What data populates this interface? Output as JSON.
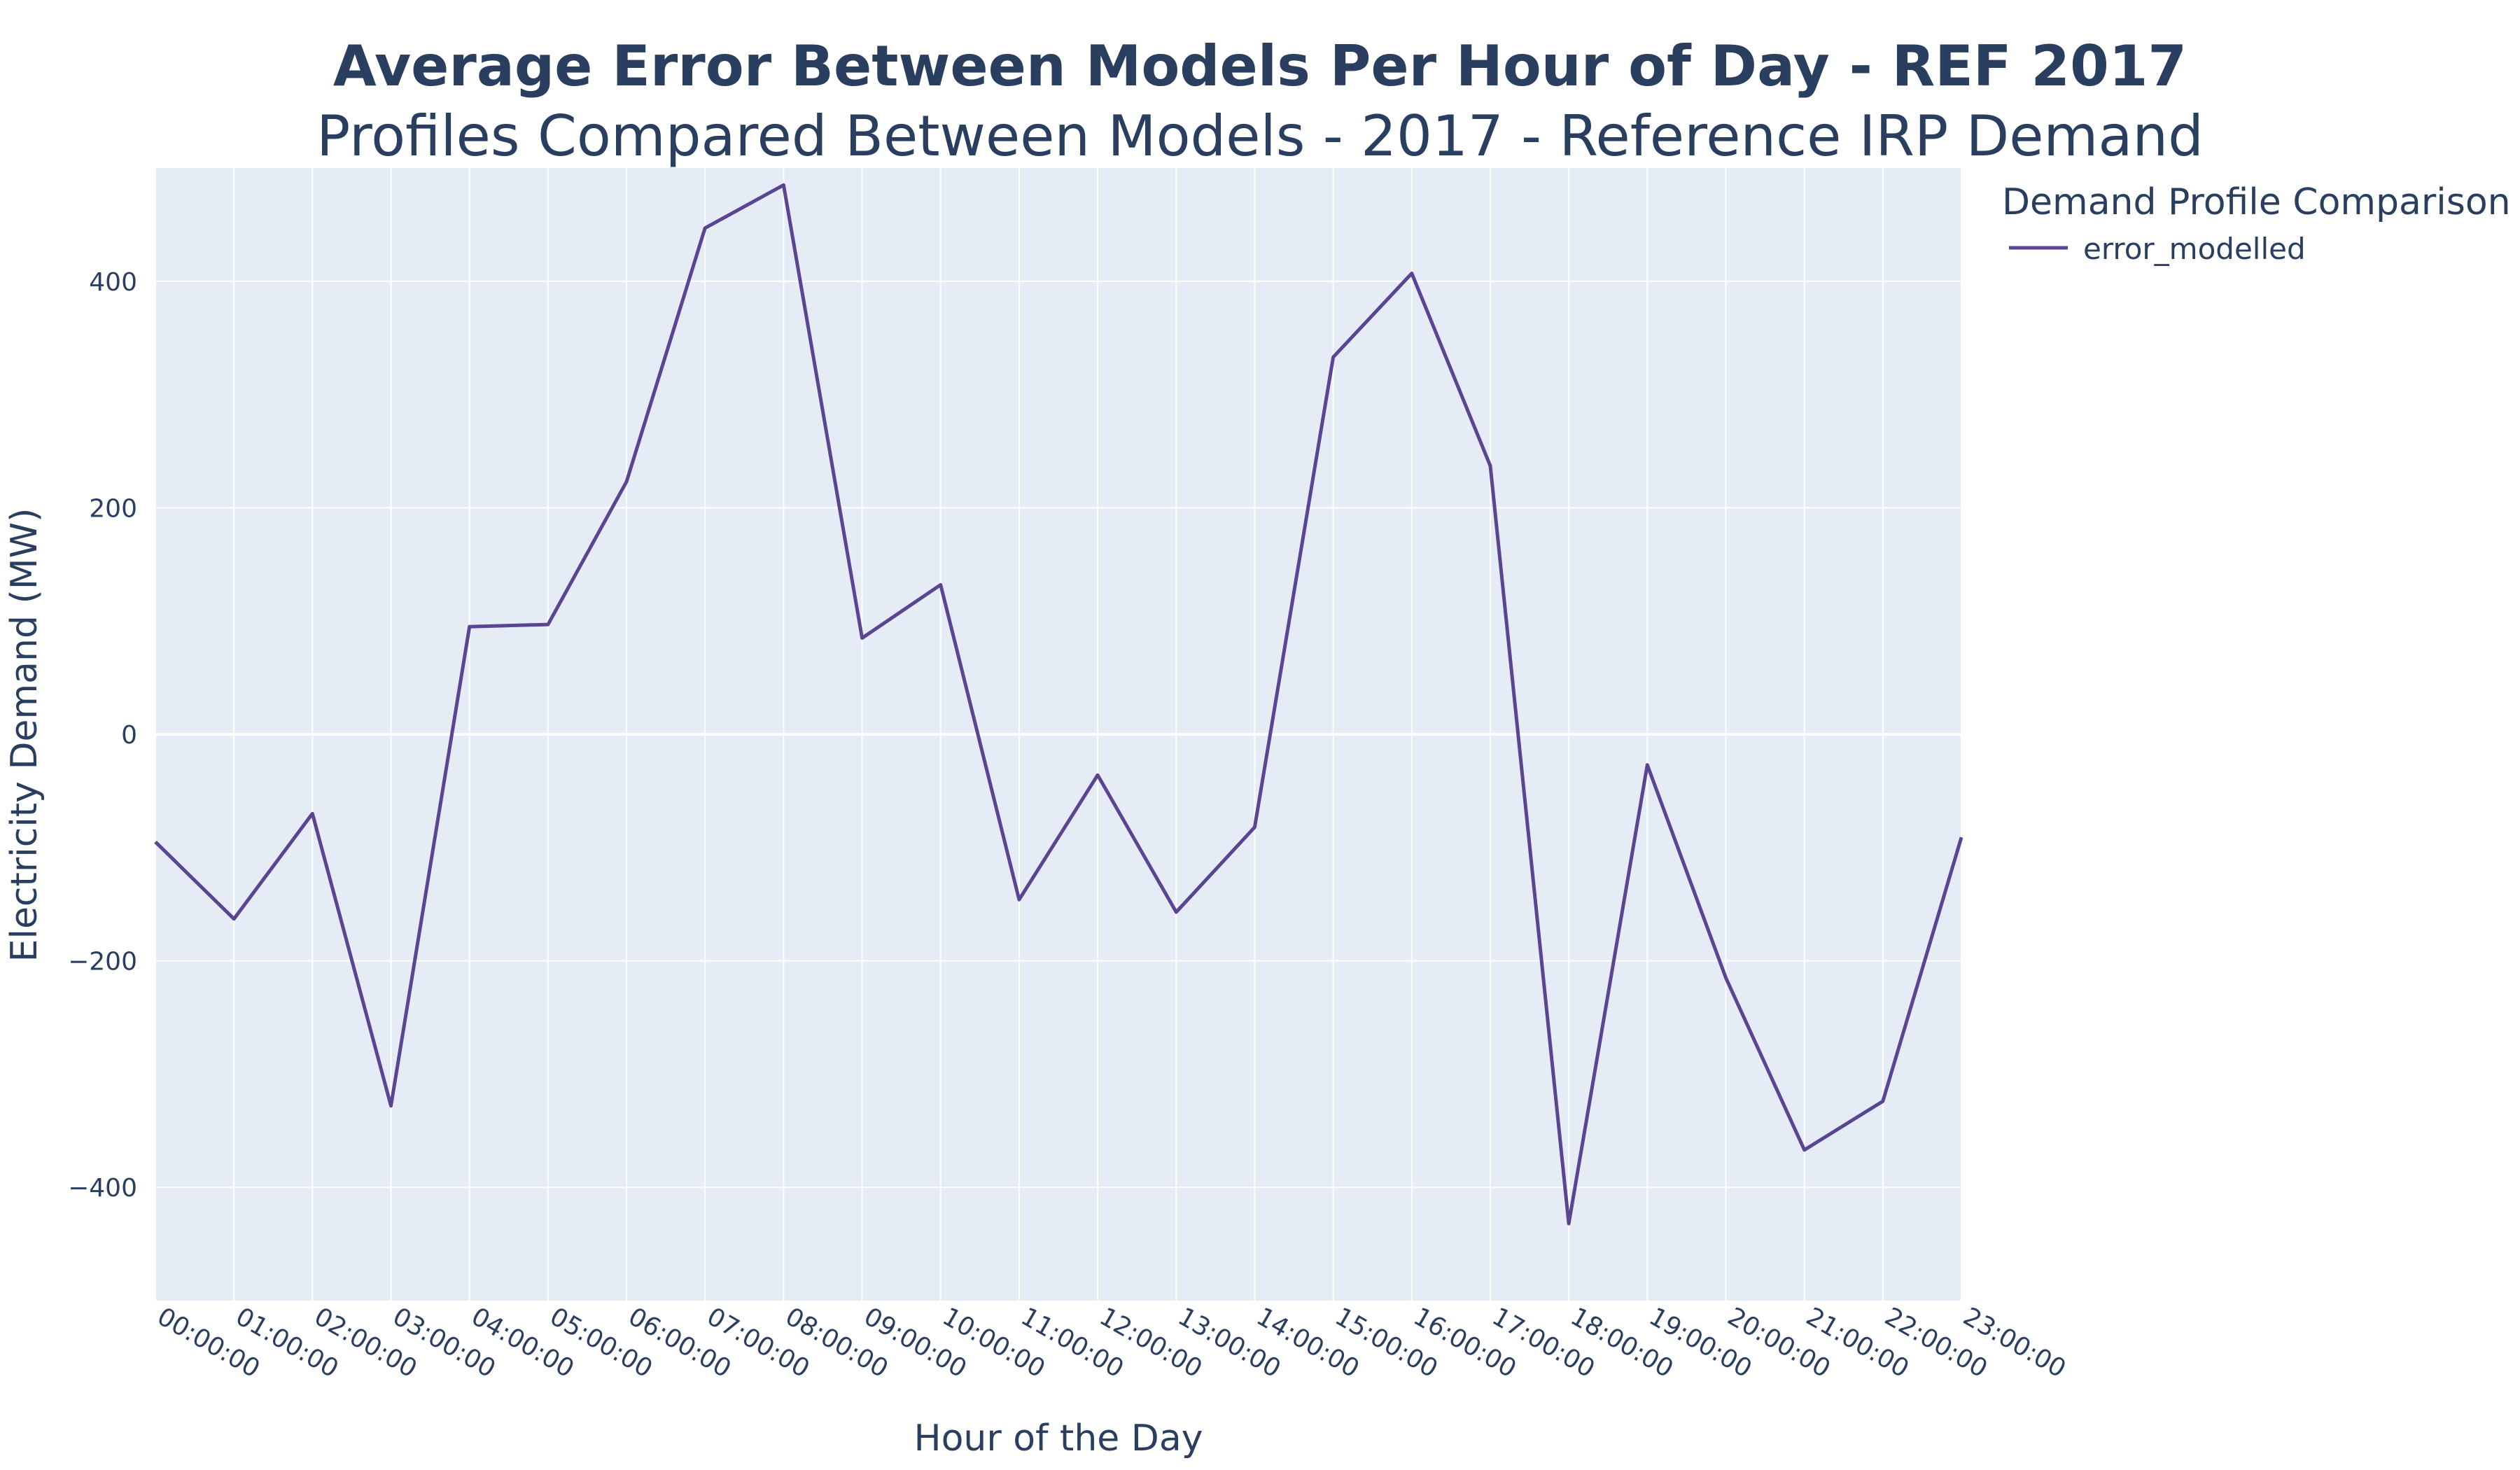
{
  "colors": {
    "plot_bg": "#e5ecf6",
    "grid": "#ffffff",
    "text": "#2a3f5f",
    "series_line": "#5a4593"
  },
  "chart_data": {
    "type": "line",
    "title": "Average Error Between Models Per Hour of Day - REF 2017",
    "subtitle": "Profiles Compared Between Models - 2017 - Reference IRP Demand",
    "xlabel": "Hour of the Day",
    "ylabel": "Electricity Demand (MW)",
    "ylim": [
      -500,
      500
    ],
    "yticks": [
      -400,
      -200,
      0,
      200,
      400
    ],
    "ytick_labels": [
      "−400",
      "−200",
      "0",
      "200",
      "400"
    ],
    "grid": true,
    "legend": {
      "title": "Demand Profile Comparison",
      "placement": "top-right outside plot"
    },
    "categories": [
      "00:00:00",
      "01:00:00",
      "02:00:00",
      "03:00:00",
      "04:00:00",
      "05:00:00",
      "06:00:00",
      "07:00:00",
      "08:00:00",
      "09:00:00",
      "10:00:00",
      "11:00:00",
      "12:00:00",
      "13:00:00",
      "14:00:00",
      "15:00:00",
      "16:00:00",
      "17:00:00",
      "18:00:00",
      "19:00:00",
      "20:00:00",
      "21:00:00",
      "22:00:00",
      "23:00:00"
    ],
    "series": [
      {
        "name": "error_modelled",
        "values": [
          -95,
          -163,
          -70,
          -328,
          95,
          97,
          223,
          447,
          485,
          85,
          132,
          -146,
          -36,
          -157,
          -82,
          333,
          407,
          237,
          -432,
          -27,
          -215,
          -367,
          -324,
          -91
        ]
      }
    ]
  }
}
